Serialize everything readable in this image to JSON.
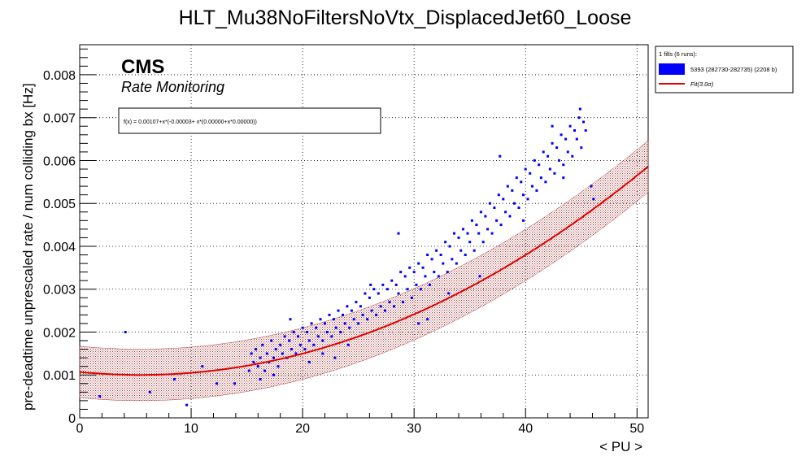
{
  "chart_data": {
    "type": "scatter",
    "title": "HLT_Mu38NoFiltersNoVtx_DisplacedJet60_Loose",
    "xlabel": "< PU >",
    "ylabel": "pre-deadtime unprescaled rate / num colliding bx [Hz]",
    "xlim": [
      0,
      51
    ],
    "ylim": [
      0,
      0.0087
    ],
    "x_ticks": [
      "0",
      "10",
      "20",
      "30",
      "40",
      "50"
    ],
    "y_ticks": [
      "0",
      "0.001",
      "0.002",
      "0.003",
      "0.004",
      "0.005",
      "0.006",
      "0.007",
      "0.008"
    ],
    "grid": true,
    "cms_label": "CMS",
    "sub_label": "Rate Monitoring",
    "fit_formula": "f(x) = 0.00107+x*(-0.00003+ x*(0.00000+x*0.00000))",
    "fit_coefficients": {
      "p0": 0.00107,
      "p1": -2.54e-05,
      "p2": 2.34e-06
    },
    "band_sigma": 3.0,
    "band_halfwidth": 0.0006,
    "legend": {
      "position": "top-right",
      "header": "1 fills (6 runs):",
      "entries": [
        {
          "label": "5393 (282730-282735) (2208 b)",
          "kind": "fill"
        },
        {
          "label": "Fit(3.0σ)",
          "kind": "line"
        }
      ]
    },
    "series": [
      {
        "name": "5393 (282730-282735) (2208 b)",
        "color": "#0000ff",
        "points": [
          [
            1.8,
            0.0005
          ],
          [
            4.1,
            0.002
          ],
          [
            6.3,
            0.0006
          ],
          [
            8.5,
            0.0009
          ],
          [
            9.6,
            0.0003
          ],
          [
            11,
            0.0012
          ],
          [
            12.3,
            0.0008
          ],
          [
            13.9,
            0.0008
          ],
          [
            15.2,
            0.0011
          ],
          [
            15.4,
            0.0015
          ],
          [
            15.6,
            0.0013
          ],
          [
            15.8,
            0.0016
          ],
          [
            16,
            0.0012
          ],
          [
            16.2,
            0.0014
          ],
          [
            16.4,
            0.0017
          ],
          [
            16.6,
            0.0011
          ],
          [
            16.8,
            0.0015
          ],
          [
            17,
            0.0013
          ],
          [
            17.2,
            0.0018
          ],
          [
            17.4,
            0.0014
          ],
          [
            17.6,
            0.0016
          ],
          [
            17.8,
            0.0012
          ],
          [
            18,
            0.0017
          ],
          [
            18.2,
            0.0015
          ],
          [
            18.4,
            0.0019
          ],
          [
            18.6,
            0.0014
          ],
          [
            18.8,
            0.0018
          ],
          [
            19,
            0.0016
          ],
          [
            19.2,
            0.002
          ],
          [
            19.4,
            0.0015
          ],
          [
            19.6,
            0.0019
          ],
          [
            19.8,
            0.0017
          ],
          [
            20,
            0.0021
          ],
          [
            20.2,
            0.0016
          ],
          [
            20.4,
            0.002
          ],
          [
            20.6,
            0.0018
          ],
          [
            20.8,
            0.0022
          ],
          [
            21,
            0.0017
          ],
          [
            21.2,
            0.0021
          ],
          [
            21.4,
            0.0019
          ],
          [
            21.6,
            0.0023
          ],
          [
            21.8,
            0.0018
          ],
          [
            22,
            0.0022
          ],
          [
            22.2,
            0.002
          ],
          [
            22.4,
            0.0024
          ],
          [
            22.6,
            0.0019
          ],
          [
            22.8,
            0.0023
          ],
          [
            23,
            0.0021
          ],
          [
            23.2,
            0.0025
          ],
          [
            23.4,
            0.002
          ],
          [
            23.6,
            0.0024
          ],
          [
            23.8,
            0.0022
          ],
          [
            24,
            0.0026
          ],
          [
            24.2,
            0.0021
          ],
          [
            24.4,
            0.0025
          ],
          [
            24.6,
            0.0023
          ],
          [
            24.8,
            0.0027
          ],
          [
            25,
            0.0022
          ],
          [
            25.2,
            0.0026
          ],
          [
            25.4,
            0.0024
          ],
          [
            25.6,
            0.0029
          ],
          [
            25.8,
            0.0023
          ],
          [
            26,
            0.0028
          ],
          [
            26.2,
            0.0025
          ],
          [
            26.4,
            0.003
          ],
          [
            26.6,
            0.0024
          ],
          [
            26.8,
            0.0029
          ],
          [
            27,
            0.0026
          ],
          [
            27.2,
            0.0031
          ],
          [
            27.4,
            0.0025
          ],
          [
            27.6,
            0.003
          ],
          [
            27.8,
            0.0027
          ],
          [
            28,
            0.0032
          ],
          [
            28.2,
            0.0026
          ],
          [
            28.4,
            0.0031
          ],
          [
            28.6,
            0.0029
          ],
          [
            28.8,
            0.0034
          ],
          [
            29,
            0.0027
          ],
          [
            29.2,
            0.0033
          ],
          [
            29.4,
            0.003
          ],
          [
            29.6,
            0.0035
          ],
          [
            29.8,
            0.0028
          ],
          [
            30,
            0.0034
          ],
          [
            30.2,
            0.0031
          ],
          [
            30.4,
            0.0036
          ],
          [
            30.6,
            0.003
          ],
          [
            30.8,
            0.0035
          ],
          [
            31,
            0.0033
          ],
          [
            31.2,
            0.0038
          ],
          [
            31.4,
            0.0031
          ],
          [
            31.6,
            0.0037
          ],
          [
            31.8,
            0.0034
          ],
          [
            32,
            0.0039
          ],
          [
            32.2,
            0.0033
          ],
          [
            32.4,
            0.0038
          ],
          [
            32.6,
            0.0036
          ],
          [
            32.8,
            0.0041
          ],
          [
            33,
            0.0034
          ],
          [
            33.2,
            0.004
          ],
          [
            33.4,
            0.0037
          ],
          [
            33.6,
            0.0043
          ],
          [
            33.8,
            0.0036
          ],
          [
            34,
            0.0042
          ],
          [
            34.2,
            0.0039
          ],
          [
            34.4,
            0.0044
          ],
          [
            34.6,
            0.0038
          ],
          [
            34.8,
            0.0043
          ],
          [
            35,
            0.0041
          ],
          [
            35.2,
            0.0046
          ],
          [
            35.4,
            0.0039
          ],
          [
            35.6,
            0.0045
          ],
          [
            35.8,
            0.0043
          ],
          [
            36,
            0.0048
          ],
          [
            36.2,
            0.0041
          ],
          [
            36.4,
            0.0047
          ],
          [
            36.6,
            0.0044
          ],
          [
            36.8,
            0.005
          ],
          [
            37,
            0.0043
          ],
          [
            37.2,
            0.0049
          ],
          [
            37.4,
            0.0046
          ],
          [
            37.6,
            0.0052
          ],
          [
            37.8,
            0.0045
          ],
          [
            38,
            0.0051
          ],
          [
            38.2,
            0.0048
          ],
          [
            38.4,
            0.0054
          ],
          [
            38.6,
            0.0047
          ],
          [
            38.8,
            0.0053
          ],
          [
            39,
            0.005
          ],
          [
            39.2,
            0.0056
          ],
          [
            39.4,
            0.0049
          ],
          [
            39.6,
            0.0055
          ],
          [
            39.8,
            0.0052
          ],
          [
            40,
            0.0058
          ],
          [
            40.2,
            0.0051
          ],
          [
            40.4,
            0.0057
          ],
          [
            40.6,
            0.0054
          ],
          [
            40.8,
            0.006
          ],
          [
            41,
            0.0053
          ],
          [
            41.2,
            0.0059
          ],
          [
            41.4,
            0.0056
          ],
          [
            41.6,
            0.0062
          ],
          [
            41.8,
            0.0055
          ],
          [
            42,
            0.0061
          ],
          [
            42.2,
            0.0058
          ],
          [
            42.4,
            0.0064
          ],
          [
            42.6,
            0.0057
          ],
          [
            42.8,
            0.0063
          ],
          [
            43,
            0.006
          ],
          [
            43.2,
            0.0066
          ],
          [
            43.4,
            0.0059
          ],
          [
            43.6,
            0.0065
          ],
          [
            43.8,
            0.0062
          ],
          [
            44,
            0.0068
          ],
          [
            44.2,
            0.0061
          ],
          [
            44.4,
            0.0067
          ],
          [
            44.6,
            0.0065
          ],
          [
            44.8,
            0.007
          ],
          [
            45,
            0.0063
          ],
          [
            45.2,
            0.0069
          ],
          [
            45.4,
            0.0067
          ],
          [
            28.6,
            0.0043
          ],
          [
            31.2,
            0.0023
          ],
          [
            35.9,
            0.0033
          ],
          [
            37.7,
            0.0061
          ],
          [
            43.4,
            0.0056
          ],
          [
            45.9,
            0.0054
          ],
          [
            46.1,
            0.0051
          ],
          [
            18.9,
            0.0023
          ],
          [
            24.1,
            0.0017
          ],
          [
            21.8,
            0.0015
          ],
          [
            26.1,
            0.0031
          ],
          [
            33.1,
            0.0029
          ],
          [
            30.4,
            0.0022
          ],
          [
            39.8,
            0.0046
          ],
          [
            42.4,
            0.0068
          ],
          [
            44.9,
            0.0072
          ],
          [
            20.6,
            0.0013
          ],
          [
            22.9,
            0.0014
          ],
          [
            16.2,
            0.0009
          ],
          [
            17.4,
            0.001
          ]
        ]
      }
    ]
  }
}
